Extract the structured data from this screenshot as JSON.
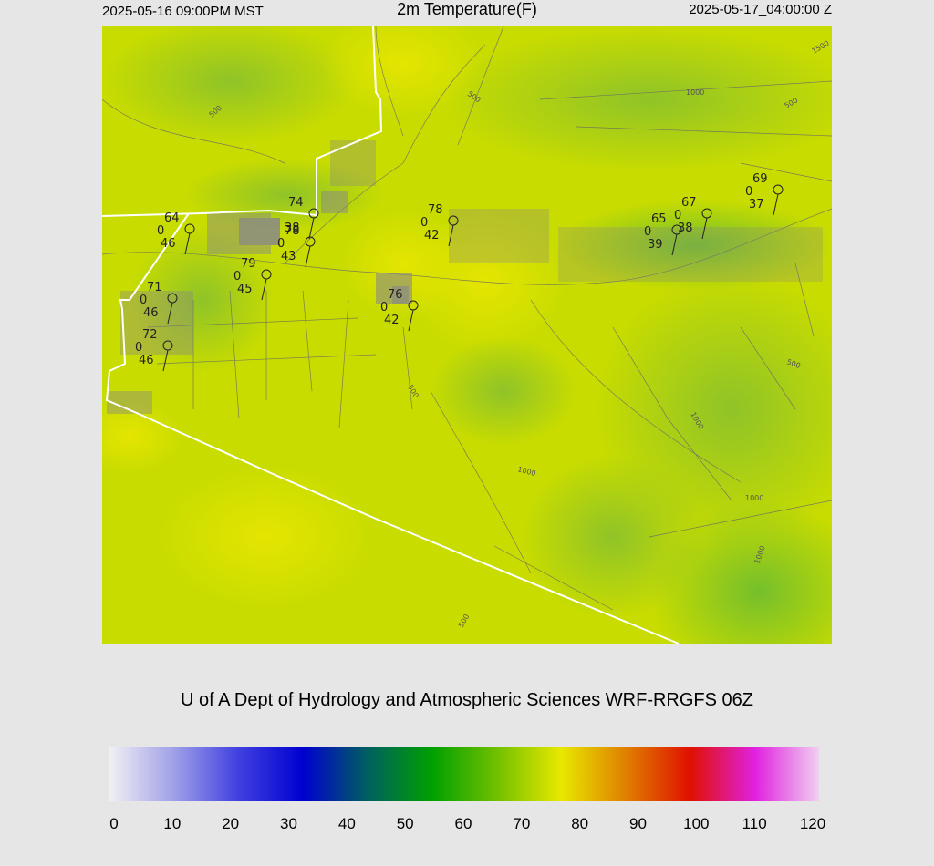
{
  "header": {
    "left": "2025-05-16 09:00PM MST",
    "title": "2m Temperature(F)",
    "right": "2025-05-17_04:00:00 Z"
  },
  "credit": "U of A Dept of Hydrology and Atmospheric Sciences WRF-RRGFS 06Z",
  "colorbar": {
    "ticks": [
      "0",
      "10",
      "20",
      "30",
      "40",
      "50",
      "60",
      "70",
      "80",
      "90",
      "100",
      "110",
      "120"
    ],
    "colors": [
      "#f0f0f4",
      "#a0a0e8",
      "#4040e0",
      "#0000d0",
      "#006060",
      "#00a000",
      "#70c000",
      "#e8e800",
      "#e08000",
      "#e01000",
      "#e020e0",
      "#f0d0f0"
    ]
  },
  "map": {
    "colors": {
      "base": "#c8dc00",
      "warm": "#e4e400",
      "cool": "#a0c820",
      "cooler": "#80c030",
      "border": "#ffffff",
      "roads": "#666666"
    },
    "contour_labels": [
      "500",
      "500",
      "500",
      "500",
      "500",
      "500",
      "1000",
      "1000",
      "1000",
      "1000",
      "1000",
      "1500"
    ],
    "stations": [
      {
        "temp": "64",
        "wind": "0",
        "dew": "46"
      },
      {
        "temp": "74",
        "wind": "",
        "dew": "38"
      },
      {
        "temp": "78",
        "wind": "0",
        "dew": "43"
      },
      {
        "temp": "78",
        "wind": "0",
        "dew": "42"
      },
      {
        "temp": "79",
        "wind": "0",
        "dew": "45"
      },
      {
        "temp": "71",
        "wind": "0",
        "dew": "46"
      },
      {
        "temp": "72",
        "wind": "0",
        "dew": "46"
      },
      {
        "temp": "76",
        "wind": "0",
        "dew": "42"
      },
      {
        "temp": "67",
        "wind": "0",
        "dew": "38"
      },
      {
        "temp": "65",
        "wind": "0",
        "dew": "39"
      },
      {
        "temp": "69",
        "wind": "0",
        "dew": "37"
      }
    ]
  }
}
